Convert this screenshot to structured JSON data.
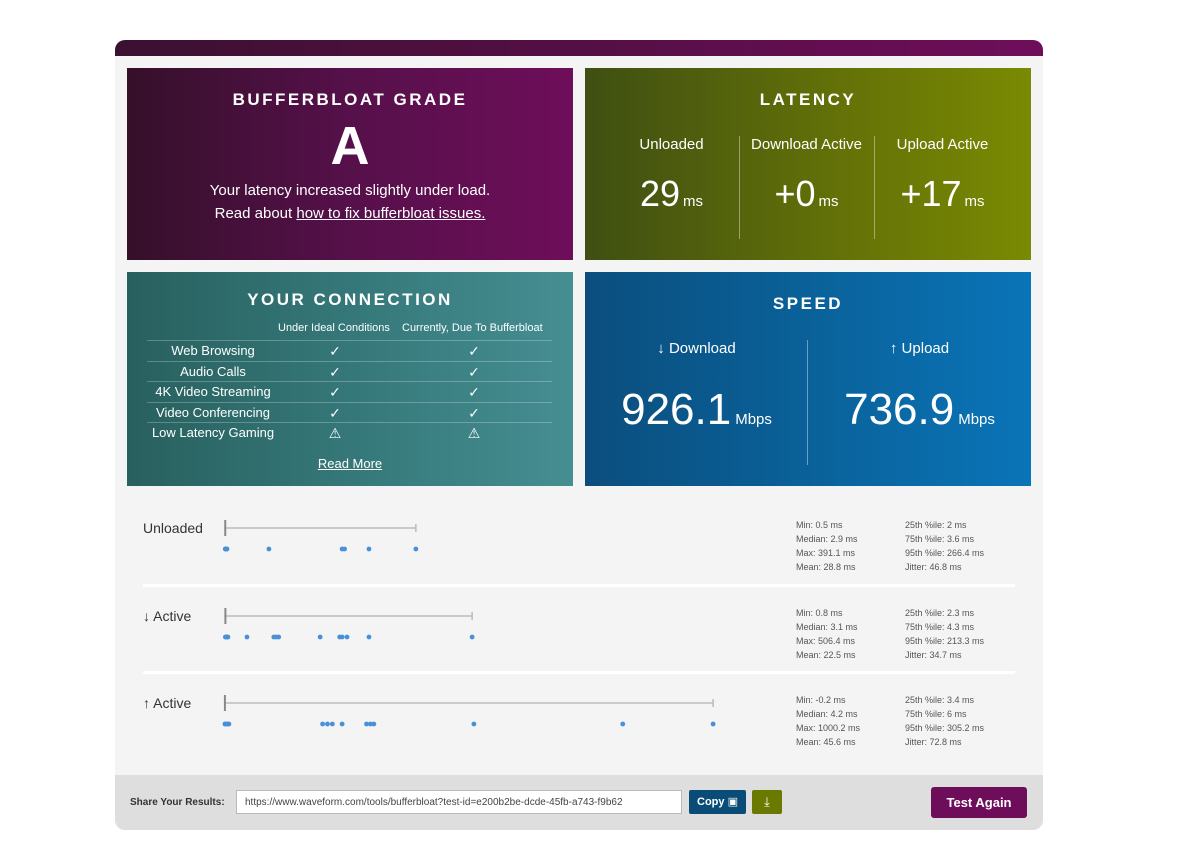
{
  "bufferbloat": {
    "title": "BUFFERBLOAT GRADE",
    "grade": "A",
    "line1": "Your latency increased slightly under load.",
    "read_about": "Read about",
    "fix_link": "how to fix bufferbloat issues."
  },
  "latency": {
    "title": "LATENCY",
    "columns": [
      {
        "label": "Unloaded",
        "value": "29",
        "unit": "ms"
      },
      {
        "label": "Download Active",
        "value": "+0",
        "unit": "ms"
      },
      {
        "label": "Upload Active",
        "value": "+17",
        "unit": "ms"
      }
    ]
  },
  "connection": {
    "title": "YOUR CONNECTION",
    "col_ideal": "Under Ideal Conditions",
    "col_current": "Currently, Due To Bufferbloat",
    "rows": [
      {
        "name": "Web Browsing",
        "ideal": "check",
        "current": "check"
      },
      {
        "name": "Audio Calls",
        "ideal": "check",
        "current": "check"
      },
      {
        "name": "4K Video Streaming",
        "ideal": "check",
        "current": "check"
      },
      {
        "name": "Video Conferencing",
        "ideal": "check",
        "current": "check"
      },
      {
        "name": "Low Latency Gaming",
        "ideal": "warning",
        "current": "warning"
      }
    ],
    "read_more": "Read More"
  },
  "speed": {
    "title": "SPEED",
    "download": {
      "label": "↓ Download",
      "value": "926.1",
      "unit": "Mbps"
    },
    "upload": {
      "label": "↑ Upload",
      "value": "736.9",
      "unit": "Mbps"
    }
  },
  "distributions": [
    {
      "label": "Unloaded",
      "points_ms": [
        0.5,
        1.5,
        2.9,
        3.5,
        4.0,
        90,
        240,
        245,
        295,
        391.1
      ],
      "whisker_ms": [
        0.5,
        391.1
      ],
      "stats_left": [
        "Min: 0.5 ms",
        "Median: 2.9 ms",
        "Max: 391.1 ms",
        "Mean: 28.8 ms"
      ],
      "stats_right": [
        "25th %ile: 2 ms",
        "75th %ile: 3.6 ms",
        "95th %ile: 266.4 ms",
        "Jitter: 46.8 ms"
      ]
    },
    {
      "label": "↓ Active",
      "points_ms": [
        0.8,
        2,
        3.1,
        4.5,
        6,
        45,
        100,
        105,
        110,
        195,
        235,
        240,
        250,
        295,
        506.4
      ],
      "whisker_ms": [
        0.8,
        506.4
      ],
      "stats_left": [
        "Min: 0.8 ms",
        "Median: 3.1 ms",
        "Max: 506.4 ms",
        "Mean: 22.5 ms"
      ],
      "stats_right": [
        "25th %ile: 2.3 ms",
        "75th %ile: 4.3 ms",
        "95th %ile: 213.3 ms",
        "Jitter: 34.7 ms"
      ]
    },
    {
      "label": "↑ Active",
      "points_ms": [
        -0.2,
        1,
        4.2,
        6,
        8,
        200,
        210,
        220,
        240,
        290,
        298,
        305,
        510,
        815,
        1000.2
      ],
      "whisker_ms": [
        -0.2,
        1000.2
      ],
      "stats_left": [
        "Min: -0.2 ms",
        "Median: 4.2 ms",
        "Max: 1000.2 ms",
        "Mean: 45.6 ms"
      ],
      "stats_right": [
        "25th %ile: 3.4 ms",
        "75th %ile: 6 ms",
        "95th %ile: 305.2 ms",
        "Jitter: 72.8 ms"
      ]
    }
  ],
  "distribution_axis_max_ms": 1000,
  "share": {
    "label": "Share Your Results:",
    "url": "https://www.waveform.com/tools/bufferbloat?test-id=e200b2be-dcde-45fb-a743-f9b62",
    "copy_label": "Copy",
    "download_icon": "download-icon",
    "test_again": "Test Again"
  },
  "colors": {
    "grade": "#6e0e5a",
    "latency": "#7a8a02",
    "connection": "#458e92",
    "speed": "#0a74b8",
    "dot": "#4a90d9"
  }
}
